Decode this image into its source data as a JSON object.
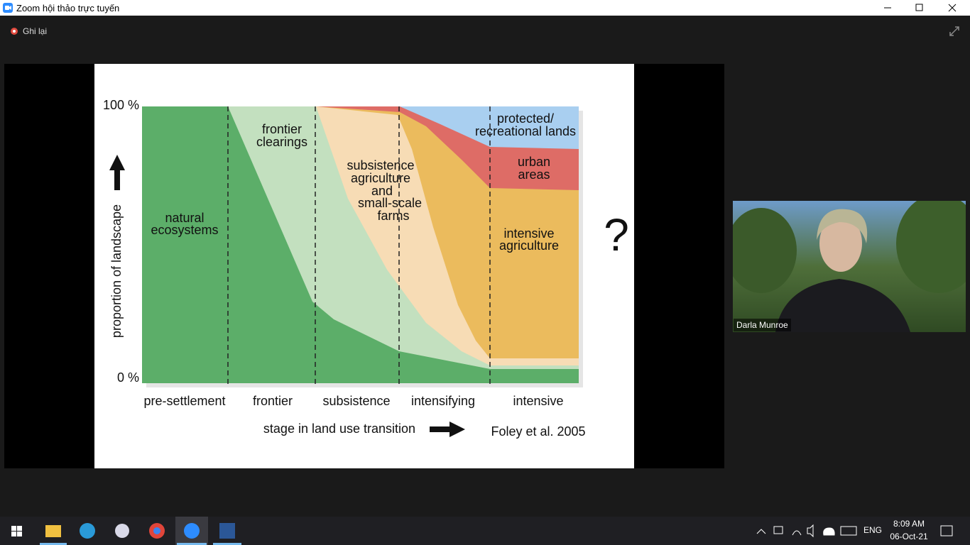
{
  "window": {
    "title": "Zoom hội thảo trực tuyến"
  },
  "toolbar": {
    "recording": "Ghi lại"
  },
  "slide": {
    "y_axis_label": "proportion of landscape",
    "y_ticks": [
      "100 %",
      "0 %"
    ],
    "stages": [
      "pre-settlement",
      "frontier",
      "subsistence",
      "intensifying",
      "intensive"
    ],
    "x_axis_label": "stage in land use transition",
    "citation": "Foley et al. 2005",
    "question": "?",
    "areas": [
      {
        "lines": [
          "natural",
          "ecosystems"
        ]
      },
      {
        "lines": [
          "frontier",
          "clearings"
        ]
      },
      {
        "lines": [
          "subsistence",
          "agriculture",
          "and",
          "small-scale",
          "farms"
        ]
      },
      {
        "lines": [
          "intensive",
          "agriculture"
        ]
      },
      {
        "lines": [
          "urban",
          "areas"
        ]
      },
      {
        "lines": [
          "protected/",
          "recreational lands"
        ]
      }
    ]
  },
  "video": {
    "participant": "Darla Munroe"
  },
  "taskbar": {
    "language": "ENG",
    "time": "8:09 AM",
    "date": "06-Oct-21"
  }
}
